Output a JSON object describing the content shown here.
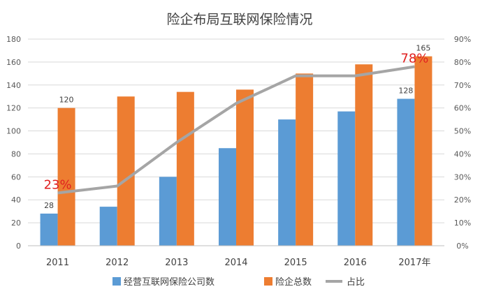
{
  "chart_data": {
    "type": "bar",
    "title": "险企布局互联网保险情况",
    "categories": [
      "2011",
      "2012",
      "2013",
      "2014",
      "2015",
      "2016",
      "2017年"
    ],
    "series": [
      {
        "name": "经营互联网保险公司数",
        "kind": "bar",
        "axis": "left",
        "color": "#5B9BD5",
        "values": [
          28,
          34,
          60,
          85,
          110,
          117,
          128
        ]
      },
      {
        "name": "险企总数",
        "kind": "bar",
        "axis": "left",
        "color": "#ED7D31",
        "values": [
          120,
          130,
          134,
          136,
          150,
          158,
          165
        ]
      },
      {
        "name": "占比",
        "kind": "line",
        "axis": "right",
        "color": "#A5A5A5",
        "values": [
          23,
          26,
          45,
          62,
          74,
          74,
          78
        ]
      }
    ],
    "y_left": {
      "ylim": [
        0,
        180
      ],
      "ticks": [
        "0",
        "20",
        "40",
        "60",
        "80",
        "100",
        "120",
        "140",
        "160",
        "180"
      ]
    },
    "y_right": {
      "ylim": [
        0,
        90
      ],
      "ticks": [
        "0%",
        "10%",
        "20%",
        "30%",
        "40%",
        "50%",
        "60%",
        "70%",
        "80%",
        "90%"
      ]
    },
    "data_labels": [
      {
        "series": 0,
        "index": 0,
        "text": "28"
      },
      {
        "series": 1,
        "index": 0,
        "text": "120"
      },
      {
        "series": 0,
        "index": 6,
        "text": "128"
      },
      {
        "series": 1,
        "index": 6,
        "text": "165"
      },
      {
        "series": 2,
        "index": 0,
        "text": "23%",
        "color": "#E02020"
      },
      {
        "series": 2,
        "index": 6,
        "text": "78%",
        "color": "#E02020"
      }
    ],
    "legend": {
      "position": "bottom",
      "entries": [
        "经营互联网保险公司数",
        "险企总数",
        "占比"
      ]
    },
    "grid": true
  }
}
